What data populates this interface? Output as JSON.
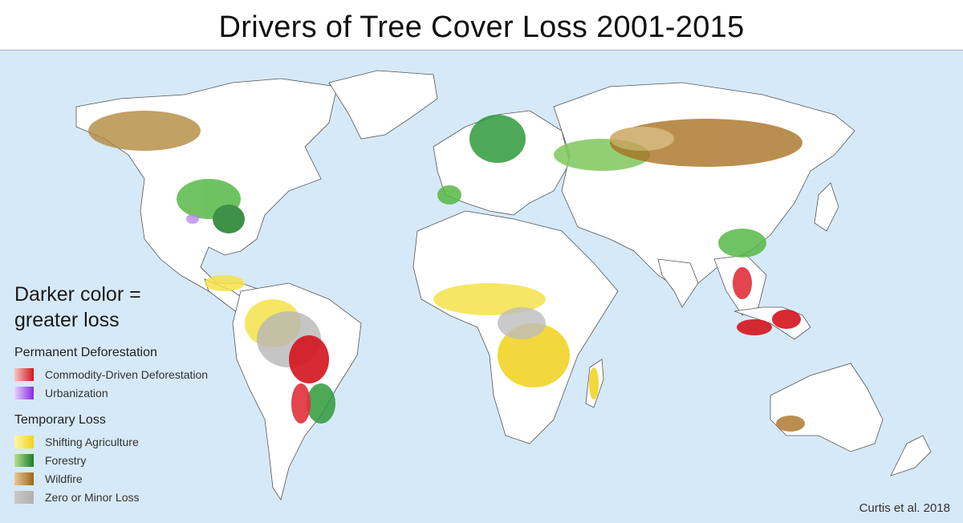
{
  "title": "Drivers of Tree Cover Loss 2001-2015",
  "legend": {
    "note": "Darker color = greater loss",
    "groups": [
      {
        "title": "Permanent Deforestation",
        "items": [
          {
            "label": "Commodity-Driven Deforestation",
            "colors": [
              "#f6c6c6",
              "#d4141e"
            ]
          },
          {
            "label": "Urbanization",
            "colors": [
              "#e6d3fa",
              "#8a2be2"
            ]
          }
        ]
      },
      {
        "title": "Temporary Loss",
        "items": [
          {
            "label": "Shifting Agriculture",
            "colors": [
              "#fff6a8",
              "#f0d21a"
            ]
          },
          {
            "label": "Forestry",
            "colors": [
              "#b7e08f",
              "#1e7e28"
            ]
          },
          {
            "label": "Wildfire",
            "colors": [
              "#e6c894",
              "#9a6818"
            ]
          },
          {
            "label": "Zero or Minor Loss",
            "colors": [
              "#c9c9c9",
              "#b0b0b0"
            ]
          }
        ]
      }
    ]
  },
  "credit": "Curtis et al. 2018",
  "colors": {
    "ocean": "#d6e9f8",
    "land": "#ffffff",
    "border": "#555555"
  }
}
